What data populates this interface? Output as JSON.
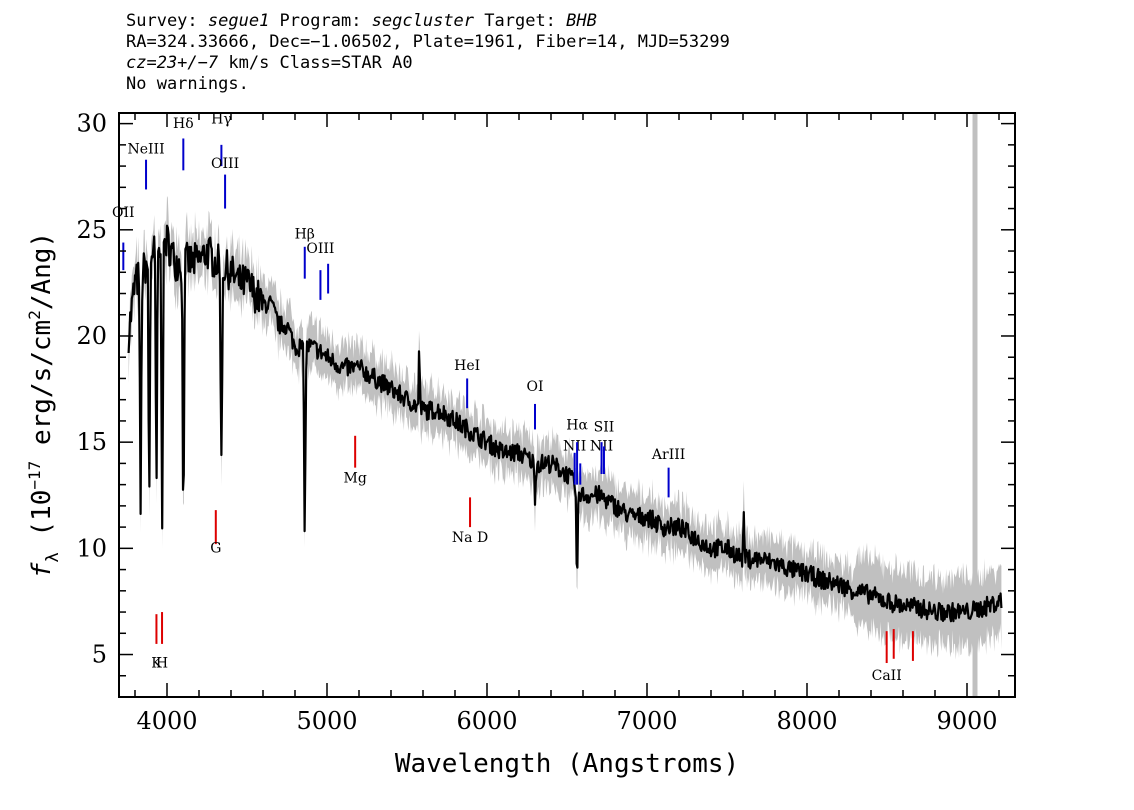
{
  "header": {
    "l1_survey_label": "Survey: ",
    "l1_survey": "segue1",
    "l1_program_label": " Program: ",
    "l1_program": "segcluster",
    "l1_target_label": " Target: ",
    "l1_target": "BHB",
    "l2": "RA=324.33666, Dec=−1.06502, Plate=1961, Fiber=14, MJD=53299",
    "l3_cz": "cz=23+/−7",
    "l3_rest": " km/s Class=STAR A0",
    "l4": "No warnings."
  },
  "chart_data": {
    "type": "line",
    "title": "",
    "xlabel": "Wavelength (Angstroms)",
    "ylabel": "fλ (10⁻¹⁷ erg/s/cm²/Ang)",
    "xlabel_parts": {
      "main": "Wavelength (Angstroms)"
    },
    "ylabel_parts": {
      "f": "f",
      "lambda": "λ",
      "open": " (10",
      "exp": "−17",
      "mid": " erg/s/cm",
      "sq": "2",
      "close": "/Ang)"
    },
    "xlim": [
      3700,
      9300
    ],
    "ylim": [
      3,
      30.5
    ],
    "xticks": [
      4000,
      5000,
      6000,
      7000,
      8000,
      9000
    ],
    "xtick_labels": [
      "4000",
      "5000",
      "6000",
      "7000",
      "8000",
      "9000"
    ],
    "yticks": [
      5,
      10,
      15,
      20,
      25,
      30
    ],
    "ytick_labels": [
      "5",
      "10",
      "15",
      "20",
      "25",
      "30"
    ],
    "grid": false,
    "colors": {
      "spectrum": "#000000",
      "error_band": "#c0c0c0",
      "emission": "#0000cc",
      "absorption": "#dd0000",
      "sky_band": "#c0c0c0"
    },
    "sky_band_x": 9050,
    "series": [
      {
        "role": "flux",
        "x": [
          3750,
          3800,
          3850,
          3900,
          3950,
          4000,
          4050,
          4100,
          4150,
          4200,
          4250,
          4300,
          4350,
          4400,
          4450,
          4500,
          4550,
          4600,
          4650,
          4700,
          4750,
          4800,
          4850,
          4900,
          4950,
          5000,
          5100,
          5200,
          5300,
          5400,
          5500,
          5600,
          5700,
          5800,
          5900,
          6000,
          6100,
          6200,
          6300,
          6400,
          6500,
          6600,
          6700,
          6800,
          6900,
          7000,
          7100,
          7200,
          7300,
          7400,
          7500,
          7600,
          7700,
          7800,
          7900,
          8000,
          8100,
          8200,
          8300,
          8400,
          8500,
          8600,
          8700,
          8800,
          8900,
          9000,
          9100,
          9200
        ],
        "y": [
          19.5,
          22.5,
          23.0,
          24.0,
          24.0,
          24.5,
          23.5,
          23.5,
          23.5,
          23.5,
          24.0,
          23.5,
          23.3,
          23.0,
          22.5,
          22.5,
          22.0,
          21.5,
          21.5,
          20.5,
          20.5,
          19.5,
          19.5,
          19.5,
          19.3,
          19.0,
          18.5,
          18.5,
          18.0,
          17.5,
          17.0,
          16.5,
          16.5,
          16.0,
          15.5,
          15.0,
          14.5,
          14.5,
          14.0,
          14.0,
          13.5,
          12.5,
          12.5,
          12.0,
          11.5,
          11.5,
          11.0,
          11.0,
          10.5,
          10.0,
          10.0,
          9.5,
          9.5,
          9.3,
          9.0,
          8.8,
          8.5,
          8.3,
          8.0,
          7.8,
          7.5,
          7.3,
          7.2,
          7.0,
          7.0,
          7.0,
          7.2,
          7.5
        ]
      }
    ],
    "features": [
      {
        "x": 3835,
        "depth": 11.0
      },
      {
        "x": 3889,
        "depth": 11.5
      },
      {
        "x": 3934,
        "depth": 11.0
      },
      {
        "x": 3970,
        "depth": 12.5
      },
      {
        "x": 4102,
        "depth": 12.0
      },
      {
        "x": 4340,
        "depth": 9.5
      },
      {
        "x": 4861,
        "depth": 8.5
      },
      {
        "x": 5577,
        "depth": -3.0
      },
      {
        "x": 6300,
        "depth": 1.5
      },
      {
        "x": 6563,
        "depth": 4.5
      },
      {
        "x": 7605,
        "depth": -2.5
      }
    ],
    "line_markers": [
      {
        "label": "OII",
        "x": 3727,
        "y0": 23.1,
        "y1": 24.4,
        "type": "emission",
        "label_y": 25.6
      },
      {
        "label": "NeIII",
        "x": 3869,
        "y0": 26.9,
        "y1": 28.3,
        "type": "emission",
        "label_y": 28.6
      },
      {
        "label": "Hδ",
        "x": 4102,
        "y0": 27.8,
        "y1": 29.3,
        "type": "emission",
        "label_y": 29.8
      },
      {
        "label": "Hγ",
        "x": 4340,
        "y0": 28.0,
        "y1": 29.0,
        "type": "emission",
        "label_y": 30.0
      },
      {
        "label": "OIII",
        "x": 4363,
        "y0": 26.0,
        "y1": 27.6,
        "type": "emission",
        "label_y": 27.9
      },
      {
        "label": "Hβ",
        "x": 4861,
        "y0": 22.7,
        "y1": 24.2,
        "type": "emission",
        "label_y": 24.6
      },
      {
        "label": "OIII",
        "x": 4959,
        "y0": 21.7,
        "y1": 23.1,
        "type": "emission",
        "label_y": 23.9
      },
      {
        "label": "",
        "x": 5007,
        "y0": 22.0,
        "y1": 23.4,
        "type": "emission",
        "label_y": 0
      },
      {
        "label": "HeI",
        "x": 5876,
        "y0": 16.6,
        "y1": 18.0,
        "type": "emission",
        "label_y": 18.4
      },
      {
        "label": "OI",
        "x": 6300,
        "y0": 15.6,
        "y1": 16.8,
        "type": "emission",
        "label_y": 17.4
      },
      {
        "label": "NII",
        "x": 6548,
        "y0": 13.0,
        "y1": 14.5,
        "type": "emission",
        "label_y": 14.6
      },
      {
        "label": "Hα",
        "x": 6563,
        "y0": 13.0,
        "y1": 15.0,
        "type": "emission",
        "label_y": 15.6
      },
      {
        "label": "",
        "x": 6583,
        "y0": 13.0,
        "y1": 14.0,
        "type": "emission",
        "label_y": 0
      },
      {
        "label": "NII",
        "x": 6716,
        "y0": 13.5,
        "y1": 15.0,
        "type": "emission",
        "label_y": 14.6
      },
      {
        "label": "SII",
        "x": 6731,
        "y0": 13.5,
        "y1": 14.8,
        "type": "emission",
        "label_y": 15.5
      },
      {
        "label": "ArIII",
        "x": 7135,
        "y0": 12.4,
        "y1": 13.8,
        "type": "emission",
        "label_y": 14.2
      },
      {
        "label": "K",
        "x": 3934,
        "y0": 5.5,
        "y1": 6.9,
        "type": "absorption",
        "label_y": 4.4
      },
      {
        "label": "H",
        "x": 3969,
        "y0": 5.5,
        "y1": 7.0,
        "type": "absorption",
        "label_y": 4.4
      },
      {
        "label": "G",
        "x": 4305,
        "y0": 10.2,
        "y1": 11.8,
        "type": "absorption",
        "label_y": 9.8
      },
      {
        "label": "Mg",
        "x": 5176,
        "y0": 13.8,
        "y1": 15.3,
        "type": "absorption",
        "label_y": 13.1
      },
      {
        "label": "Na D",
        "x": 5894,
        "y0": 11.0,
        "y1": 12.4,
        "type": "absorption",
        "label_y": 10.3
      },
      {
        "label": "CaII",
        "x": 8498,
        "y0": 4.6,
        "y1": 6.1,
        "type": "absorption",
        "label_y": 3.8
      },
      {
        "label": "",
        "x": 8542,
        "y0": 4.8,
        "y1": 6.2,
        "type": "absorption",
        "label_y": 0
      },
      {
        "label": "",
        "x": 8662,
        "y0": 4.7,
        "y1": 6.1,
        "type": "absorption",
        "label_y": 0
      }
    ]
  }
}
